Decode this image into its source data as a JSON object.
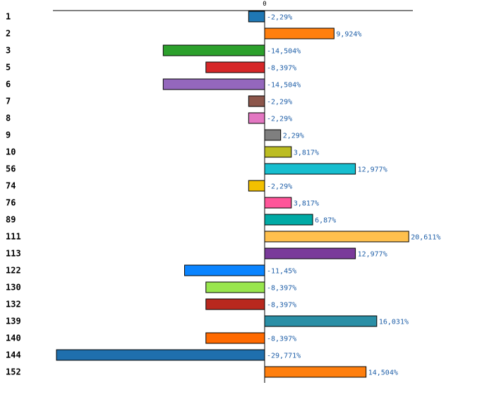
{
  "chart_data": {
    "type": "bar",
    "orientation": "horizontal",
    "zero_tick_label": "0",
    "categories": [
      "1",
      "2",
      "3",
      "5",
      "6",
      "7",
      "8",
      "9",
      "10",
      "56",
      "74",
      "76",
      "89",
      "111",
      "113",
      "122",
      "130",
      "132",
      "139",
      "140",
      "144",
      "152"
    ],
    "values": [
      -2.29,
      9.924,
      -14.504,
      -8.397,
      -14.504,
      -2.29,
      -2.29,
      2.29,
      3.817,
      12.977,
      -2.29,
      3.817,
      6.87,
      20.611,
      12.977,
      -11.45,
      -8.397,
      -8.397,
      16.031,
      -8.397,
      -29.771,
      14.504
    ],
    "value_labels": [
      "-2,29%",
      "9,924%",
      "-14,504%",
      "-8,397%",
      "-14,504%",
      "-2,29%",
      "-2,29%",
      "2,29%",
      "3,817%",
      "12,977%",
      "-2,29%",
      "3,817%",
      "6,87%",
      "20,611%",
      "12,977%",
      "-11,45%",
      "-8,397%",
      "-8,397%",
      "16,031%",
      "-8,397%",
      "-29,771%",
      "14,504%"
    ],
    "colors": [
      "#1f77b4",
      "#ff7f0e",
      "#2ca02c",
      "#d62728",
      "#9467bd",
      "#8c564b",
      "#e377c2",
      "#7f7f7f",
      "#bcbd22",
      "#17becf",
      "#f2c000",
      "#ff5599",
      "#00aaa5",
      "#ffc04d",
      "#7a3a9a",
      "#0a84ff",
      "#99e64d",
      "#b8281e",
      "#2b8fa6",
      "#ff6a00",
      "#1f6fad",
      "#ff7f0e"
    ],
    "xlim": [
      -30,
      21
    ],
    "title": "",
    "xlabel": "",
    "ylabel": ""
  }
}
